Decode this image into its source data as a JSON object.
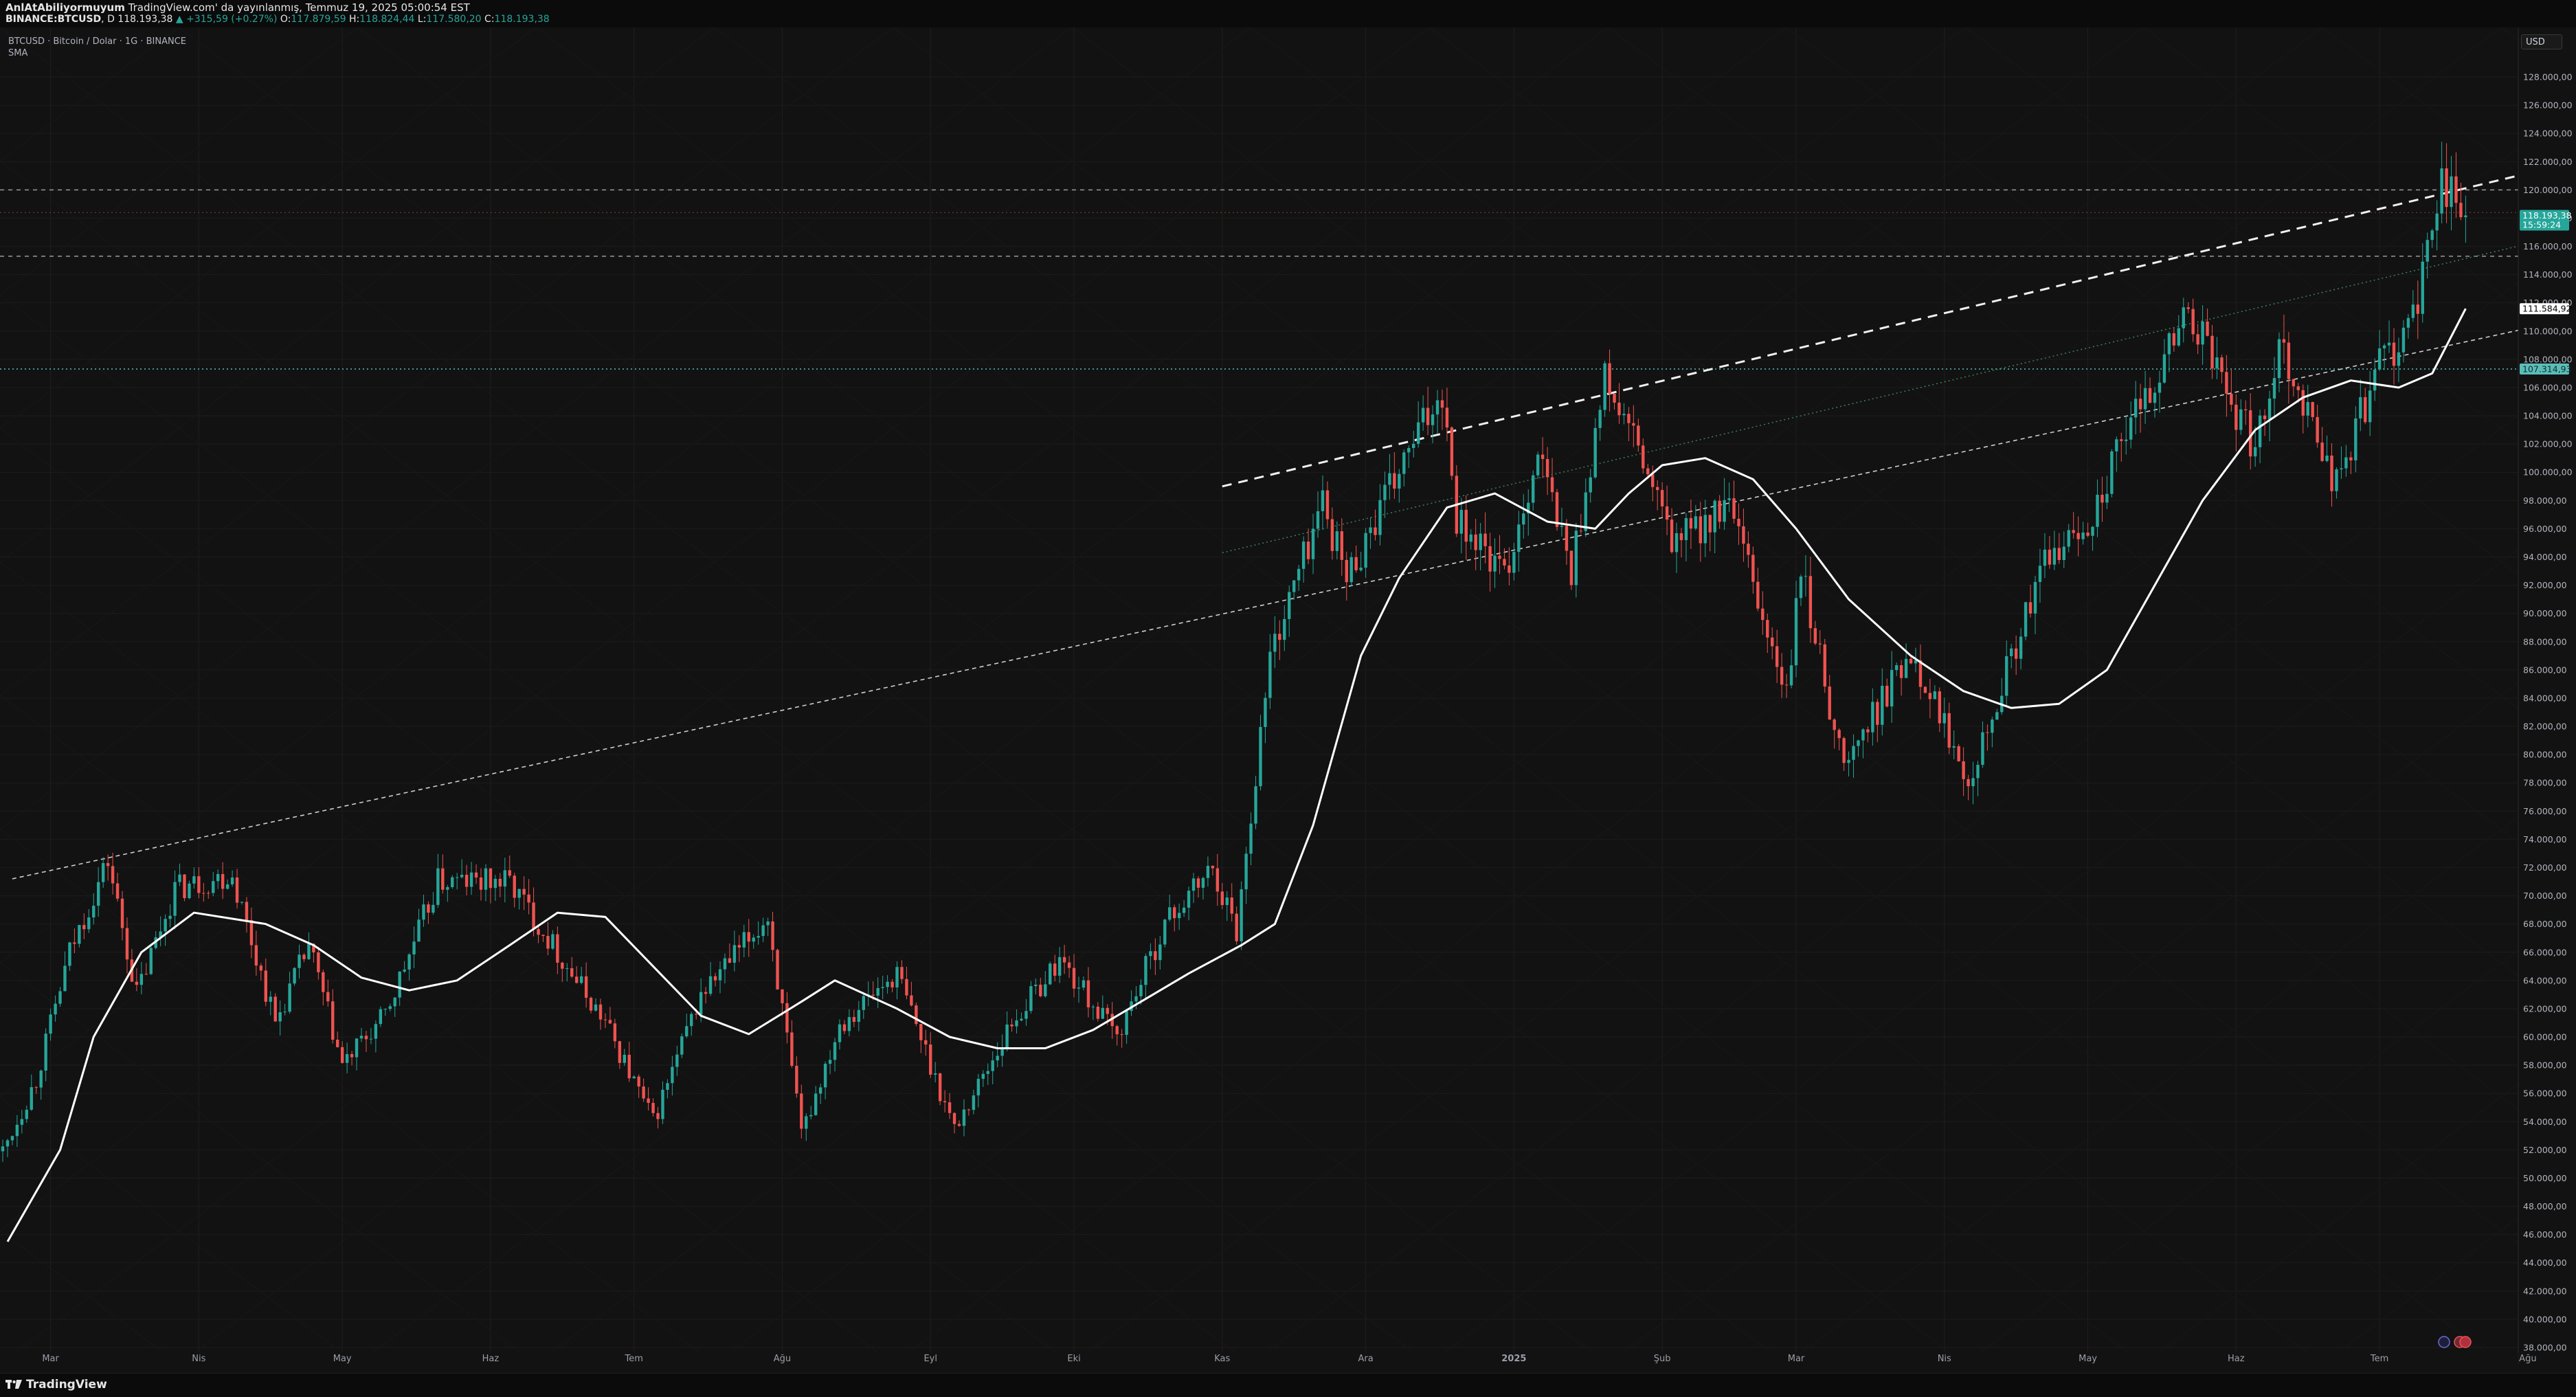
{
  "header": {
    "author": "AnlAtAbiliyormuyum",
    "publish_text": "TradingView.com' da yayınlanmış, Temmuz 19, 2025 05:00:54 EST",
    "symbol_full": "BINANCE:BTCUSD",
    "interval": "D",
    "last": "118.193,38",
    "change": "▲ +315,59 (+0.27%)",
    "open_label": "O:",
    "open": "117.879,59",
    "high_label": "H:",
    "high": "118.824,44",
    "low_label": "L:",
    "low": "117.580,20",
    "close_label": "C:",
    "close": "118.193,38"
  },
  "legend": {
    "title": "BTCUSD · Bitcoin / Dolar · 1G · BINANCE",
    "indicator": "SMA"
  },
  "currency_button": "USD",
  "footer": {
    "brand": "TradingView"
  },
  "colors": {
    "background": "#121212",
    "up": "#26a69a",
    "down": "#ef5350",
    "sma": "#ffffff",
    "price_tag": "#26a69a",
    "sma_tag": "#ffffff",
    "level_tag": "#5cbdb8"
  },
  "chart_data": {
    "type": "candlestick",
    "symbol": "BTCUSD",
    "exchange": "BINANCE",
    "interval": "1G",
    "y_scale": "linear",
    "ylim": [
      38000,
      130000
    ],
    "y_ticks": [
      "128.000,00",
      "126.000,00",
      "124.000,00",
      "122.000,00",
      "120.000,00",
      "118.000,00",
      "116.000,00",
      "114.000,00",
      "112.000,00",
      "110.000,00",
      "108.000,00",
      "106.000,00",
      "104.000,00",
      "102.000,00",
      "100.000,00",
      "98.000,00",
      "96.000,00",
      "94.000,00",
      "92.000,00",
      "90.000,00",
      "88.000,00",
      "86.000,00",
      "84.000,00",
      "82.000,00",
      "80.000,00",
      "78.000,00",
      "76.000,00",
      "74.000,00",
      "72.000,00",
      "70.000,00",
      "68.000,00",
      "66.000,00",
      "64.000,00",
      "62.000,00",
      "60.000,00",
      "58.000,00",
      "56.000,00",
      "54.000,00",
      "52.000,00",
      "50.000,00",
      "48.000,00",
      "46.000,00",
      "44.000,00",
      "42.000,00",
      "40.000,00",
      "38.000,00"
    ],
    "x_ticks": [
      "Mar",
      "Nis",
      "May",
      "Haz",
      "Tem",
      "Ağu",
      "Eyl",
      "Eki",
      "Kas",
      "Ara",
      "2025",
      "Şub",
      "Mar",
      "Nis",
      "May",
      "Haz",
      "Tem",
      "Ağu"
    ],
    "x_range": [
      "2024-02-20",
      "2025-08-05"
    ],
    "grid": true,
    "price_tags": [
      {
        "value": "118.193,38",
        "sub": "15:59:24",
        "kind": "last"
      },
      {
        "value": "111.584,92",
        "kind": "sma"
      },
      {
        "value": "107.314,93",
        "kind": "level"
      }
    ],
    "horizontal_levels": [
      120000,
      118400,
      115300,
      107315
    ],
    "trend_lines": [
      {
        "from": [
          "2024-02-22",
          71200
        ],
        "to": [
          "2025-08-05",
          110500
        ],
        "style": "dashed-thin"
      },
      {
        "from": [
          "2024-11-01",
          99000
        ],
        "to": [
          "2025-08-05",
          121500
        ],
        "style": "dashed-bold"
      },
      {
        "from": [
          "2024-11-01",
          94300
        ],
        "to": [
          "2025-08-05",
          116500
        ],
        "style": "dotted-green"
      }
    ],
    "series": [
      {
        "name": "SMA",
        "type": "line",
        "points": [
          [
            "2024-02-21",
            45500
          ],
          [
            "2024-03-03",
            52000
          ],
          [
            "2024-03-10",
            60000
          ],
          [
            "2024-03-20",
            66000
          ],
          [
            "2024-03-31",
            68800
          ],
          [
            "2024-04-15",
            68000
          ],
          [
            "2024-04-25",
            66500
          ],
          [
            "2024-05-05",
            64200
          ],
          [
            "2024-05-15",
            63300
          ],
          [
            "2024-05-25",
            64000
          ],
          [
            "2024-06-05",
            66500
          ],
          [
            "2024-06-15",
            68800
          ],
          [
            "2024-06-25",
            68500
          ],
          [
            "2024-07-05",
            65000
          ],
          [
            "2024-07-15",
            61500
          ],
          [
            "2024-07-25",
            60200
          ],
          [
            "2024-08-05",
            62500
          ],
          [
            "2024-08-12",
            64000
          ],
          [
            "2024-08-25",
            62000
          ],
          [
            "2024-09-05",
            60000
          ],
          [
            "2024-09-15",
            59200
          ],
          [
            "2024-09-25",
            59200
          ],
          [
            "2024-10-05",
            60500
          ],
          [
            "2024-10-15",
            62500
          ],
          [
            "2024-10-25",
            64500
          ],
          [
            "2024-11-05",
            66500
          ],
          [
            "2024-11-12",
            68000
          ],
          [
            "2024-11-20",
            75000
          ],
          [
            "2024-11-30",
            87000
          ],
          [
            "2024-12-08",
            92500
          ],
          [
            "2024-12-18",
            97500
          ],
          [
            "2024-12-28",
            98500
          ],
          [
            "2025-01-08",
            96500
          ],
          [
            "2025-01-18",
            96000
          ],
          [
            "2025-01-25",
            98500
          ],
          [
            "2025-02-01",
            100500
          ],
          [
            "2025-02-10",
            101000
          ],
          [
            "2025-02-20",
            99500
          ],
          [
            "2025-03-01",
            96000
          ],
          [
            "2025-03-12",
            91000
          ],
          [
            "2025-03-25",
            87000
          ],
          [
            "2025-04-05",
            84500
          ],
          [
            "2025-04-15",
            83300
          ],
          [
            "2025-04-25",
            83600
          ],
          [
            "2025-05-05",
            86000
          ],
          [
            "2025-05-15",
            92000
          ],
          [
            "2025-05-25",
            98000
          ],
          [
            "2025-06-05",
            103000
          ],
          [
            "2025-06-15",
            105300
          ],
          [
            "2025-06-25",
            106500
          ],
          [
            "2025-07-05",
            106000
          ],
          [
            "2025-07-12",
            107000
          ],
          [
            "2025-07-19",
            111585
          ]
        ]
      },
      {
        "name": "BTCUSD",
        "type": "candlestick",
        "key_points": [
          [
            "2024-02-20",
            51900
          ],
          [
            "2024-02-27",
            57000
          ],
          [
            "2024-03-05",
            66000
          ],
          [
            "2024-03-13",
            72500
          ],
          [
            "2024-03-19",
            63000
          ],
          [
            "2024-03-27",
            70500
          ],
          [
            "2024-04-08",
            71500
          ],
          [
            "2024-04-17",
            61000
          ],
          [
            "2024-04-24",
            66500
          ],
          [
            "2024-05-01",
            58000
          ],
          [
            "2024-05-10",
            61500
          ],
          [
            "2024-05-21",
            71000
          ],
          [
            "2024-06-05",
            71000
          ],
          [
            "2024-06-15",
            66000
          ],
          [
            "2024-06-25",
            61000
          ],
          [
            "2024-07-05",
            54000
          ],
          [
            "2024-07-15",
            63000
          ],
          [
            "2024-07-29",
            68500
          ],
          [
            "2024-08-05",
            53000
          ],
          [
            "2024-08-13",
            61000
          ],
          [
            "2024-08-25",
            64500
          ],
          [
            "2024-09-06",
            53500
          ],
          [
            "2024-09-18",
            61000
          ],
          [
            "2024-09-28",
            65500
          ],
          [
            "2024-10-10",
            60000
          ],
          [
            "2024-10-20",
            68000
          ],
          [
            "2024-10-30",
            72000
          ],
          [
            "2024-11-04",
            67500
          ],
          [
            "2024-11-11",
            87000
          ],
          [
            "2024-11-22",
            98000
          ],
          [
            "2024-11-27",
            92500
          ],
          [
            "2024-12-05",
            98000
          ],
          [
            "2024-12-17",
            106000
          ],
          [
            "2024-12-20",
            97000
          ],
          [
            "2024-12-30",
            92500
          ],
          [
            "2025-01-06",
            101500
          ],
          [
            "2025-01-13",
            93000
          ],
          [
            "2025-01-20",
            106500
          ],
          [
            "2025-01-27",
            101500
          ],
          [
            "2025-02-03",
            95000
          ],
          [
            "2025-02-15",
            97500
          ],
          [
            "2025-02-27",
            84000
          ],
          [
            "2025-03-02",
            93000
          ],
          [
            "2025-03-11",
            79000
          ],
          [
            "2025-03-25",
            87500
          ],
          [
            "2025-04-06",
            78500
          ],
          [
            "2025-04-12",
            84000
          ],
          [
            "2025-04-22",
            93500
          ],
          [
            "2025-05-01",
            96500
          ],
          [
            "2025-05-11",
            104000
          ],
          [
            "2025-05-22",
            111500
          ],
          [
            "2025-06-05",
            101500
          ],
          [
            "2025-06-10",
            109500
          ],
          [
            "2025-06-22",
            99000
          ],
          [
            "2025-06-30",
            107000
          ],
          [
            "2025-07-09",
            111500
          ],
          [
            "2025-07-14",
            121000
          ],
          [
            "2025-07-19",
            118193
          ]
        ]
      }
    ]
  }
}
